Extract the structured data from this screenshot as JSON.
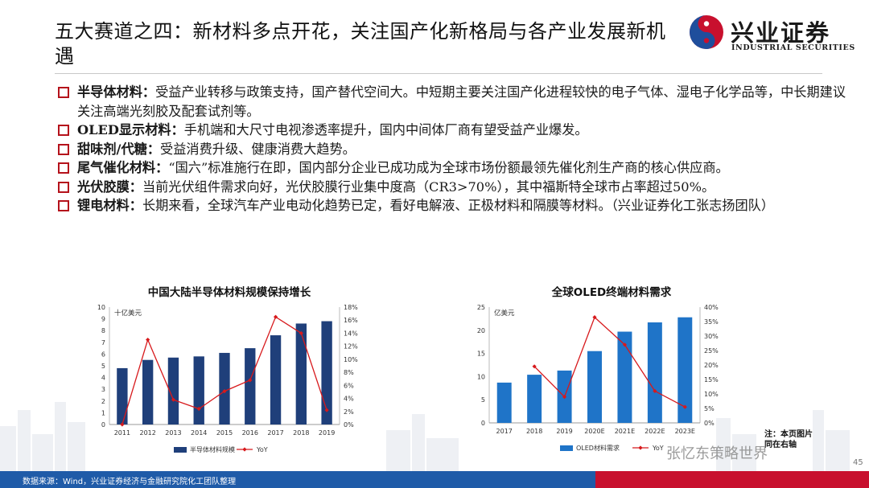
{
  "title": "五大赛道之四：新材料多点开花，关注国产化新格局与各产业发展新机遇",
  "logo": {
    "cn": "兴业证券",
    "en": "INDUSTRIAL SECURITIES"
  },
  "bullets": [
    {
      "kw": "半导体材料：",
      "text": "受益产业转移与政策支持，国产替代空间大。中短期主要关注国产化进程较快的电子气体、湿电子化学品等，中长期建议关注高端光刻胶及配套试剂等。"
    },
    {
      "kw": "OLED显示材料：",
      "text": "手机端和大尺寸电视渗透率提升，国内中间体厂商有望受益产业爆发。"
    },
    {
      "kw": "甜味剂/代糖：",
      "text": "受益消费升级、健康消费大趋势。"
    },
    {
      "kw": "尾气催化材料：",
      "text": "“国六”标准施行在即，国内部分企业已成功成为全球市场份额最领先催化剂生产商的核心供应商。"
    },
    {
      "kw": "光伏胶膜：",
      "text": "当前光伏组件需求向好，光伏胶膜行业集中度高（CR3>70%），其中福斯特全球市占率超过50%。"
    },
    {
      "kw": "锂电材料：",
      "text": "长期来看，全球汽车产业电动化趋势已定，看好电解液、正极材料和隔膜等材料。（兴业证券化工张志扬团队）"
    }
  ],
  "chart_data": [
    {
      "type": "bar",
      "title": "中国大陆半导体材料规模保持增长",
      "unit_label": "十亿美元",
      "categories": [
        "2011",
        "2012",
        "2013",
        "2014",
        "2015",
        "2016",
        "2017",
        "2018",
        "2019"
      ],
      "series": [
        {
          "name": "半导体材料规模",
          "type": "bar",
          "axis": "left",
          "values": [
            4.8,
            5.5,
            5.7,
            5.8,
            6.1,
            6.5,
            7.6,
            8.6,
            8.8
          ]
        },
        {
          "name": "YoY",
          "type": "line",
          "axis": "right",
          "values": [
            0,
            13,
            3.8,
            2.4,
            5.1,
            6.8,
            16.5,
            14,
            2.2
          ]
        }
      ],
      "ylim_left": [
        0,
        10
      ],
      "yticks_left": [
        "0",
        "1",
        "2",
        "3",
        "4",
        "5",
        "6",
        "7",
        "8",
        "9",
        "10"
      ],
      "ylim_right": [
        0,
        18
      ],
      "yticks_right": [
        "0%",
        "2%",
        "4%",
        "6%",
        "8%",
        "10%",
        "12%",
        "14%",
        "16%",
        "18%"
      ],
      "legend": "bottom",
      "colors": {
        "bar": "#1f3f7a",
        "line": "#d7191c"
      }
    },
    {
      "type": "bar",
      "title": "全球OLED终端材料需求",
      "unit_label": "亿美元",
      "categories": [
        "2017",
        "2018",
        "2019",
        "2020E",
        "2021E",
        "2022E",
        "2023E"
      ],
      "series": [
        {
          "name": "OLED材料需求",
          "type": "bar",
          "axis": "left",
          "values": [
            8.7,
            10.4,
            11.3,
            15.5,
            19.7,
            21.7,
            22.8
          ]
        },
        {
          "name": "YoY",
          "type": "line",
          "axis": "right",
          "values": [
            null,
            19.5,
            9,
            36.5,
            27,
            11,
            5.5
          ]
        }
      ],
      "ylim_left": [
        0,
        25
      ],
      "yticks_left": [
        "0",
        "5",
        "10",
        "15",
        "20",
        "25"
      ],
      "ylim_right": [
        0,
        40
      ],
      "yticks_right": [
        "0%",
        "5%",
        "10%",
        "15%",
        "20%",
        "25%",
        "30%",
        "35%",
        "40%"
      ],
      "legend": "bottom",
      "colors": {
        "bar": "#1f74c8",
        "line": "#d7191c"
      }
    }
  ],
  "note": "注：本页图片同在右轴",
  "watermark": "张忆东策略世界",
  "footer": "数据来源：Wind，兴业证券经济与金融研究院化工团队整理",
  "page_number": "45"
}
